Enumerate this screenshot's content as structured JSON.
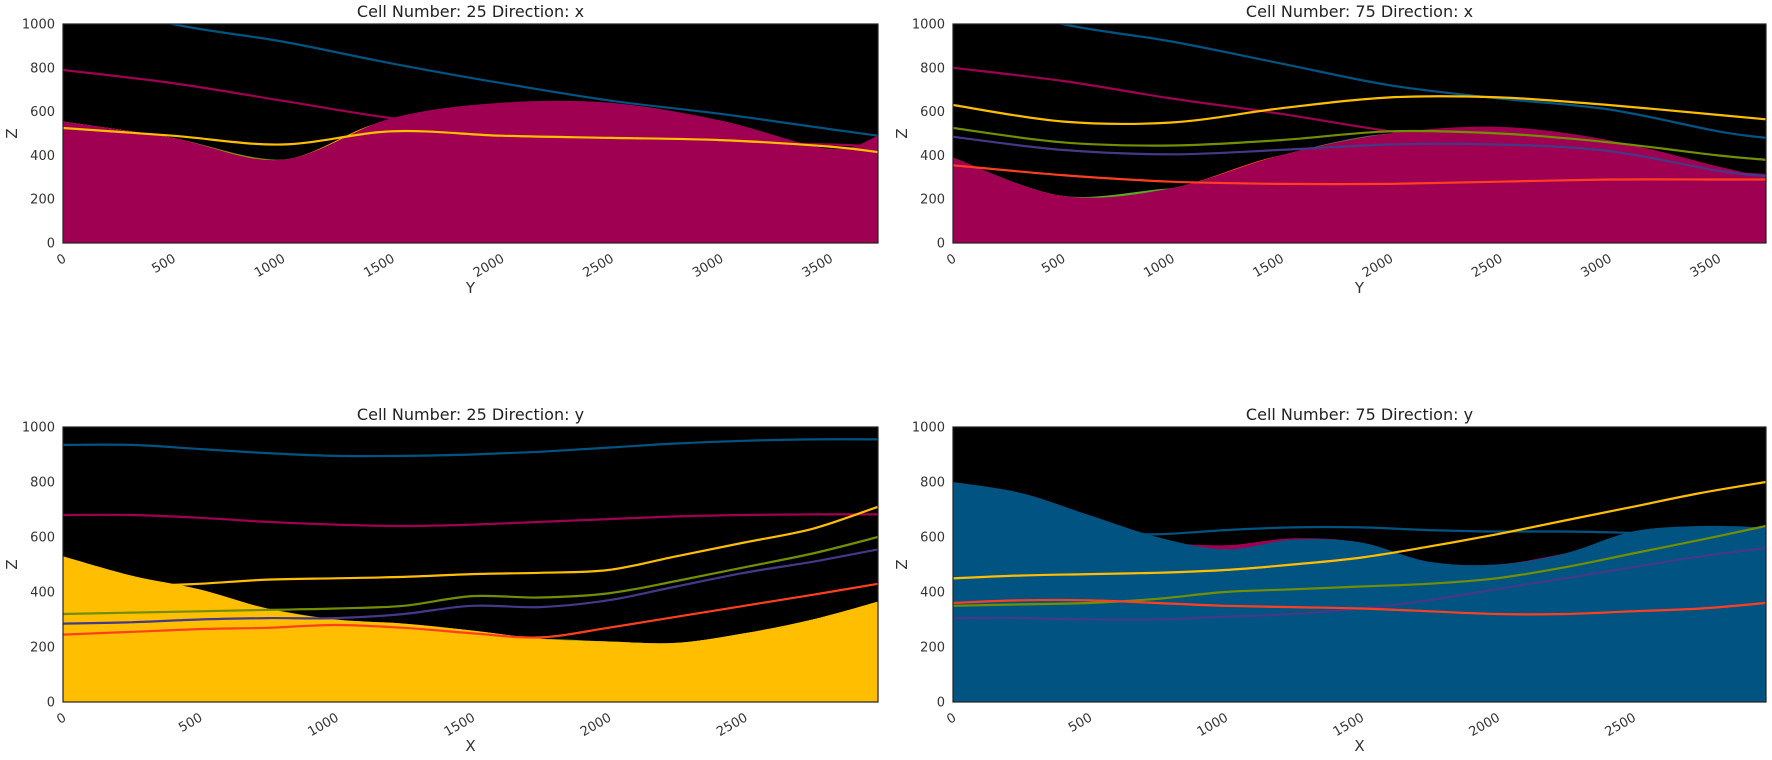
{
  "colors": {
    "background": "#000000",
    "basement_green": "#5DA629",
    "red_orange": "#FF3F20",
    "indigo": "#443988",
    "olive": "#728F02",
    "yellow": "#FFBE00",
    "magenta": "#9F0052",
    "blue": "#015482"
  },
  "chart_data": [
    {
      "type": "area",
      "title": "Cell Number: 25 Direction: x",
      "xlabel": "Y",
      "ylabel": "Z",
      "xlim": [
        0,
        3720
      ],
      "ylim": [
        0,
        1000
      ],
      "xticks": [
        "0",
        "500",
        "1000",
        "1500",
        "2000",
        "2500",
        "3000",
        "3500"
      ],
      "yticks": [
        "0",
        "200",
        "400",
        "600",
        "800",
        "1000"
      ],
      "grid": false,
      "x": [
        0,
        500,
        1000,
        1500,
        2000,
        2500,
        3000,
        3500,
        3720
      ],
      "regions": [
        {
          "color": "#5DA629",
          "top": [
            180,
            155,
            160,
            195,
            185,
            140,
            85,
            30,
            0
          ]
        },
        {
          "color": "#FF3F20",
          "top": [
            340,
            315,
            300,
            330,
            320,
            300,
            270,
            230,
            200
          ]
        },
        {
          "color": "#443988",
          "top": [
            400,
            370,
            360,
            380,
            375,
            355,
            330,
            290,
            260
          ]
        },
        {
          "color": "#728F02",
          "top": [
            555,
            480,
            380,
            490,
            470,
            450,
            420,
            370,
            300
          ]
        },
        {
          "color": "#FFBE00",
          "top": [
            555,
            480,
            380,
            560,
            480,
            450,
            420,
            370,
            300
          ]
        },
        {
          "color": "#9F0052",
          "top": [
            555,
            480,
            380,
            570,
            640,
            640,
            560,
            430,
            490
          ]
        }
      ],
      "lines": [
        {
          "color": "#015482",
          "values": [
            1130,
            1000,
            920,
            820,
            730,
            650,
            590,
            520,
            490
          ]
        },
        {
          "color": "#9F0052",
          "values": [
            790,
            730,
            650,
            570,
            520,
            480,
            460,
            450,
            440
          ]
        },
        {
          "color": "#FFBE00",
          "values": [
            525,
            490,
            450,
            510,
            490,
            480,
            470,
            440,
            415
          ]
        }
      ]
    },
    {
      "type": "area",
      "title": "Cell Number: 75 Direction: x",
      "xlabel": "Y",
      "ylabel": "Z",
      "xlim": [
        0,
        3720
      ],
      "ylim": [
        0,
        1000
      ],
      "xticks": [
        "0",
        "500",
        "1000",
        "1500",
        "2000",
        "2500",
        "3000",
        "3500"
      ],
      "yticks": [
        "0",
        "200",
        "400",
        "600",
        "800",
        "1000"
      ],
      "grid": false,
      "x": [
        0,
        500,
        1000,
        1500,
        2000,
        2500,
        3000,
        3500,
        3720
      ],
      "regions": [
        {
          "color": "#5DA629",
          "top": [
            370,
            215,
            250,
            275,
            280,
            250,
            180,
            100,
            90
          ]
        },
        {
          "color": "#FF3F20",
          "top": [
            390,
            215,
            250,
            400,
            440,
            440,
            390,
            310,
            290
          ]
        },
        {
          "color": "#443988",
          "top": [
            390,
            215,
            250,
            400,
            500,
            460,
            420,
            330,
            300
          ]
        },
        {
          "color": "#728F02",
          "top": [
            390,
            215,
            250,
            400,
            500,
            500,
            440,
            340,
            300
          ]
        },
        {
          "color": "#9F0052",
          "top": [
            390,
            215,
            250,
            400,
            500,
            530,
            470,
            350,
            300
          ]
        }
      ],
      "lines": [
        {
          "color": "#015482",
          "values": [
            1130,
            1000,
            920,
            820,
            720,
            660,
            610,
            510,
            480
          ]
        },
        {
          "color": "#9F0052",
          "values": [
            800,
            740,
            660,
            590,
            510,
            450,
            410,
            330,
            310
          ]
        },
        {
          "color": "#FFBE00",
          "values": [
            630,
            555,
            550,
            615,
            665,
            665,
            630,
            585,
            565
          ]
        },
        {
          "color": "#728F02",
          "values": [
            525,
            460,
            445,
            470,
            510,
            500,
            460,
            400,
            380
          ]
        },
        {
          "color": "#443988",
          "values": [
            485,
            425,
            405,
            425,
            450,
            450,
            420,
            330,
            305
          ]
        },
        {
          "color": "#FF3F20",
          "values": [
            355,
            310,
            280,
            270,
            270,
            280,
            290,
            290,
            290
          ]
        }
      ]
    },
    {
      "type": "area",
      "title": "Cell Number: 25 Direction: y",
      "xlabel": "X",
      "ylabel": "Z",
      "xlim": [
        0,
        2990
      ],
      "ylim": [
        0,
        1000
      ],
      "xticks": [
        "0",
        "500",
        "1000",
        "1500",
        "2000",
        "2500"
      ],
      "yticks": [
        "0",
        "200",
        "400",
        "600",
        "800",
        "1000"
      ],
      "grid": false,
      "x": [
        0,
        250,
        500,
        750,
        1000,
        1250,
        1500,
        1750,
        2000,
        2250,
        2500,
        2750,
        2990
      ],
      "regions": [
        {
          "color": "#5DA629",
          "top": [
            110,
            130,
            155,
            150,
            150,
            175,
            225,
            230,
            220,
            215,
            250,
            300,
            365
          ]
        },
        {
          "color": "#FF3F20",
          "top": [
            250,
            260,
            290,
            280,
            290,
            285,
            260,
            230,
            220,
            215,
            250,
            300,
            365
          ]
        },
        {
          "color": "#443988",
          "top": [
            295,
            310,
            330,
            330,
            300,
            285,
            260,
            230,
            220,
            215,
            250,
            300,
            365
          ]
        },
        {
          "color": "#728F02",
          "top": [
            400,
            410,
            390,
            340,
            300,
            285,
            260,
            230,
            220,
            215,
            250,
            300,
            365
          ]
        },
        {
          "color": "#FFBE00",
          "top": [
            530,
            460,
            410,
            340,
            300,
            285,
            260,
            230,
            220,
            215,
            250,
            300,
            365
          ]
        }
      ],
      "lines": [
        {
          "color": "#015482",
          "values": [
            935,
            935,
            920,
            905,
            895,
            895,
            900,
            910,
            925,
            940,
            950,
            955,
            955
          ]
        },
        {
          "color": "#9F0052",
          "values": [
            680,
            680,
            670,
            655,
            645,
            640,
            645,
            655,
            665,
            675,
            680,
            682,
            682
          ]
        },
        {
          "color": "#FFBE00",
          "values": [
            410,
            420,
            430,
            445,
            450,
            455,
            465,
            470,
            480,
            530,
            580,
            630,
            710
          ]
        },
        {
          "color": "#728F02",
          "values": [
            320,
            325,
            330,
            335,
            340,
            350,
            385,
            380,
            395,
            440,
            490,
            540,
            600
          ]
        },
        {
          "color": "#443988",
          "values": [
            285,
            290,
            300,
            305,
            305,
            320,
            350,
            345,
            370,
            420,
            470,
            510,
            555
          ]
        },
        {
          "color": "#FF3F20",
          "values": [
            245,
            255,
            265,
            270,
            280,
            270,
            250,
            235,
            270,
            310,
            350,
            390,
            430
          ]
        }
      ]
    },
    {
      "type": "area",
      "title": "Cell Number: 75 Direction: y",
      "xlabel": "X",
      "ylabel": "Z",
      "xlim": [
        0,
        2990
      ],
      "ylim": [
        0,
        1000
      ],
      "xticks": [
        "0",
        "500",
        "1000",
        "1500",
        "2000",
        "2500"
      ],
      "yticks": [
        "0",
        "200",
        "400",
        "600",
        "800",
        "1000"
      ],
      "grid": false,
      "x": [
        0,
        250,
        500,
        750,
        1000,
        1250,
        1500,
        1750,
        2000,
        2250,
        2500,
        2750,
        2990
      ],
      "regions": [
        {
          "color": "#5DA629",
          "top": [
            110,
            110,
            110,
            105,
            100,
            100,
            110,
            130,
            160,
            200,
            250,
            300,
            320
          ]
        },
        {
          "color": "#FF3F20",
          "top": [
            270,
            275,
            275,
            275,
            280,
            290,
            305,
            330,
            370,
            410,
            390,
            350,
            320
          ]
        },
        {
          "color": "#443988",
          "top": [
            325,
            325,
            330,
            330,
            335,
            345,
            360,
            385,
            420,
            440,
            420,
            370,
            330
          ]
        },
        {
          "color": "#728F02",
          "top": [
            365,
            370,
            375,
            390,
            420,
            450,
            470,
            455,
            440,
            450,
            430,
            380,
            330
          ]
        },
        {
          "color": "#9F0052",
          "top": [
            590,
            590,
            590,
            580,
            570,
            595,
            580,
            510,
            500,
            540,
            590,
            560,
            520
          ]
        },
        {
          "color": "#015482",
          "top": [
            800,
            760,
            680,
            600,
            555,
            590,
            580,
            510,
            500,
            540,
            620,
            640,
            635
          ]
        }
      ],
      "lines": [
        {
          "color": "#015482",
          "values": [
            620,
            620,
            615,
            610,
            625,
            635,
            635,
            625,
            620,
            620,
            615,
            610,
            600
          ]
        },
        {
          "color": "#FFBE00",
          "values": [
            450,
            460,
            465,
            470,
            480,
            500,
            525,
            565,
            610,
            660,
            710,
            760,
            800
          ]
        },
        {
          "color": "#728F02",
          "values": [
            350,
            355,
            360,
            375,
            400,
            410,
            420,
            430,
            450,
            490,
            540,
            590,
            640
          ]
        },
        {
          "color": "#443988",
          "values": [
            305,
            305,
            300,
            300,
            310,
            320,
            340,
            370,
            410,
            450,
            490,
            530,
            560
          ]
        },
        {
          "color": "#FF3F20",
          "values": [
            360,
            370,
            370,
            360,
            350,
            345,
            340,
            330,
            320,
            320,
            330,
            340,
            360
          ]
        }
      ]
    }
  ]
}
